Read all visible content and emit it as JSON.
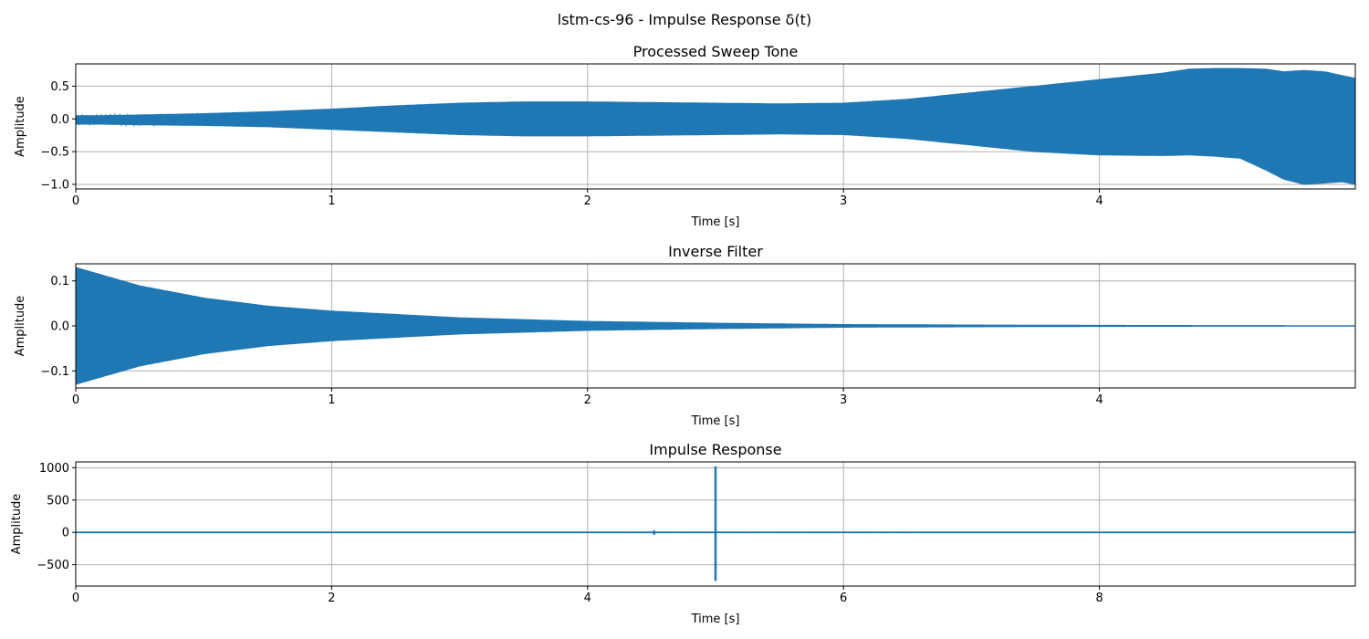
{
  "figure": {
    "suptitle": "lstm-cs-96 - Impulse Response δ(t)"
  },
  "colors": {
    "series": "#1f77b4",
    "grid": "#b0b0b0",
    "axes": "#000000"
  },
  "chart_data": [
    {
      "type": "line",
      "title": "Processed Sweep Tone",
      "xlabel": "Time [s]",
      "ylabel": "Amplitude",
      "xlim": [
        0,
        5.0
      ],
      "ylim": [
        -1.07,
        0.84
      ],
      "xticks": [
        0,
        1,
        2,
        3,
        4
      ],
      "xticklabels": [
        "0",
        "1",
        "2",
        "3",
        "4"
      ],
      "yticks": [
        -1.0,
        -0.5,
        0.0,
        0.5
      ],
      "yticklabels": [
        "−1.0",
        "−0.5",
        "0.0",
        "0.5"
      ],
      "grid": true,
      "series": [
        {
          "style": "oscillating envelope (chirp)",
          "t": [
            0,
            0.1,
            0.25,
            0.5,
            0.75,
            1.0,
            1.25,
            1.5,
            1.75,
            2.0,
            2.25,
            2.5,
            2.75,
            3.0,
            3.25,
            3.5,
            3.75,
            4.0,
            4.25,
            4.35,
            4.45,
            4.55,
            4.65,
            4.72,
            4.8,
            4.88,
            4.95,
            5.0
          ],
          "upper": [
            0.05,
            0.05,
            0.06,
            0.08,
            0.11,
            0.15,
            0.2,
            0.24,
            0.26,
            0.26,
            0.25,
            0.24,
            0.23,
            0.24,
            0.3,
            0.4,
            0.5,
            0.6,
            0.7,
            0.76,
            0.77,
            0.77,
            0.76,
            0.72,
            0.74,
            0.72,
            0.66,
            0.62
          ],
          "lower": [
            -0.08,
            -0.08,
            -0.09,
            -0.1,
            -0.12,
            -0.16,
            -0.2,
            -0.24,
            -0.26,
            -0.26,
            -0.25,
            -0.24,
            -0.23,
            -0.24,
            -0.3,
            -0.4,
            -0.5,
            -0.55,
            -0.56,
            -0.55,
            -0.57,
            -0.6,
            -0.78,
            -0.92,
            -1.0,
            -0.98,
            -0.96,
            -1.0
          ]
        }
      ]
    },
    {
      "type": "line",
      "title": "Inverse Filter",
      "xlabel": "Time [s]",
      "ylabel": "Amplitude",
      "xlim": [
        0,
        5.0
      ],
      "ylim": [
        -0.138,
        0.138
      ],
      "xticks": [
        0,
        1,
        2,
        3,
        4
      ],
      "xticklabels": [
        "0",
        "1",
        "2",
        "3",
        "4"
      ],
      "yticks": [
        -0.1,
        0.0,
        0.1
      ],
      "yticklabels": [
        "−0.1",
        "0.0",
        "0.1"
      ],
      "grid": true,
      "series": [
        {
          "style": "decaying envelope",
          "t": [
            0,
            0.25,
            0.5,
            0.75,
            1.0,
            1.5,
            2.0,
            2.5,
            3.0,
            3.5,
            4.0,
            4.5,
            5.0
          ],
          "upper": [
            0.13,
            0.089,
            0.062,
            0.044,
            0.033,
            0.018,
            0.01,
            0.006,
            0.003,
            0.002,
            0.0012,
            0.0008,
            0.0006
          ],
          "lower": [
            -0.13,
            -0.089,
            -0.062,
            -0.044,
            -0.033,
            -0.018,
            -0.01,
            -0.006,
            -0.003,
            -0.002,
            -0.0012,
            -0.0008,
            -0.0006
          ]
        }
      ]
    },
    {
      "type": "line",
      "title": "Impulse Response",
      "xlabel": "Time [s]",
      "ylabel": "Amplitude",
      "xlim": [
        0,
        10.0
      ],
      "ylim": [
        -830,
        1090
      ],
      "xticks": [
        0,
        2,
        4,
        6,
        8
      ],
      "xticklabels": [
        "0",
        "2",
        "4",
        "6",
        "8"
      ],
      "yticks": [
        -500,
        0,
        500,
        1000
      ],
      "yticklabels": [
        "−500",
        "0",
        "500",
        "1000"
      ],
      "grid": true,
      "series": [
        {
          "style": "spikes on zero baseline",
          "spikes": [
            {
              "t": 5.0,
              "min": -750,
              "max": 1020
            },
            {
              "t": 4.52,
              "min": -35,
              "max": 30
            }
          ],
          "baseline_noise": {
            "t_start": 4.2,
            "t_end": 6.6,
            "amplitude": 5
          }
        }
      ]
    }
  ]
}
